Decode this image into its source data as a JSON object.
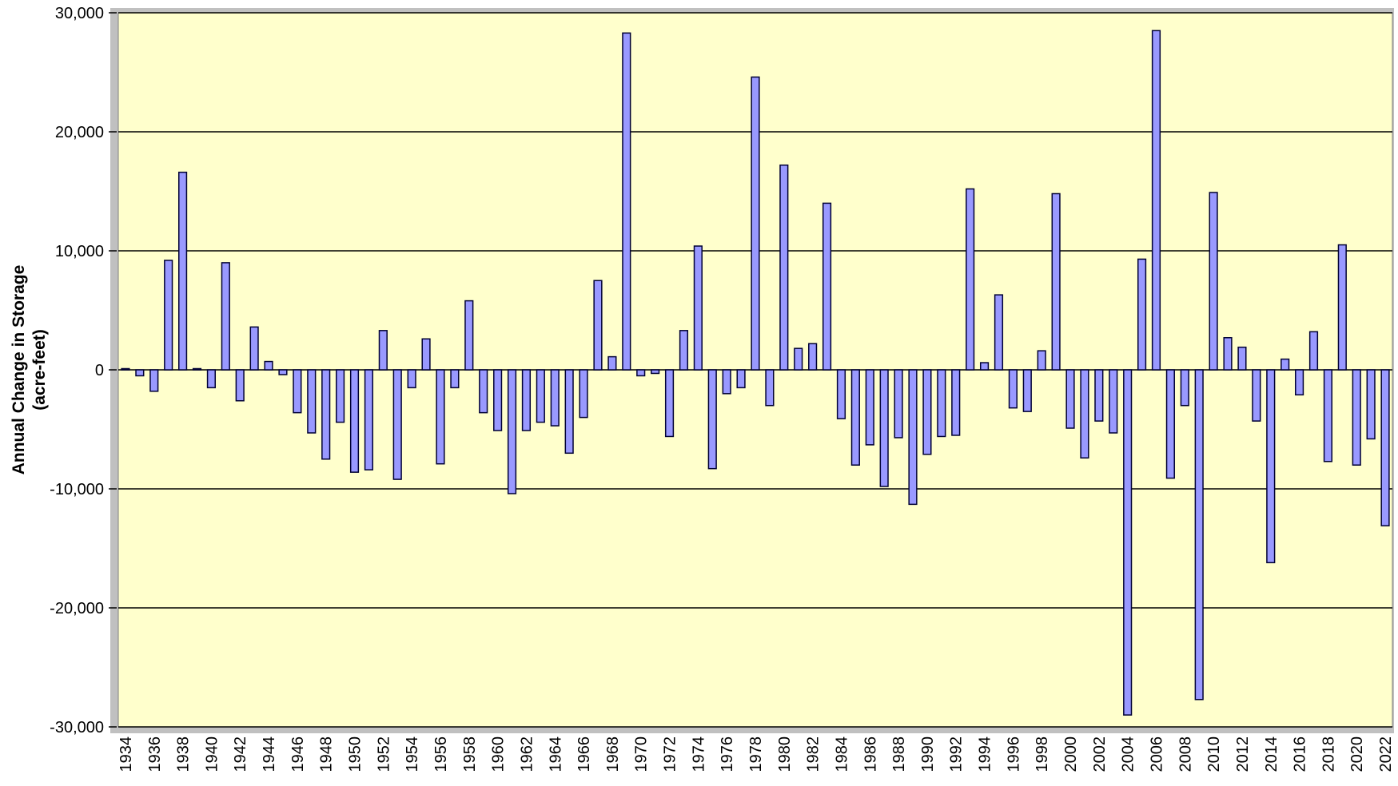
{
  "chart_data": {
    "type": "bar",
    "y_label": [
      "Annual Change in Storage",
      "(acre-feet)"
    ],
    "categories": [
      "1934",
      null,
      "1936",
      null,
      "1938",
      null,
      "1940",
      null,
      "1942",
      null,
      "1944",
      null,
      "1946",
      null,
      "1948",
      null,
      "1950",
      null,
      "1952",
      null,
      "1954",
      null,
      "1956",
      null,
      "1958",
      null,
      "1960",
      null,
      "1962",
      null,
      "1964",
      null,
      "1966",
      null,
      "1968",
      null,
      "1970",
      null,
      "1972",
      null,
      "1974",
      null,
      "1976",
      null,
      "1978",
      null,
      "1980",
      null,
      "1982",
      null,
      "1984",
      null,
      "1986",
      null,
      "1988",
      null,
      "1990",
      null,
      "1992",
      null,
      "1994",
      null,
      "1996",
      null,
      "1998",
      null,
      "2000",
      null,
      "2002",
      null,
      "2004",
      null,
      "2006",
      null,
      "2008",
      null,
      "2010",
      null,
      "2012",
      null,
      "2014",
      null,
      "2016",
      null,
      "2018",
      null,
      "2020",
      null,
      "2022"
    ],
    "values": [
      100,
      -500,
      -1800,
      9200,
      16600,
      100,
      -1500,
      9000,
      -2600,
      3600,
      700,
      -400,
      -3600,
      -5300,
      -7500,
      -4400,
      -8600,
      -8400,
      3300,
      -9200,
      -1500,
      2600,
      -7900,
      -1500,
      5800,
      -3600,
      -5100,
      -10400,
      -5100,
      -4400,
      -4700,
      -7000,
      -4000,
      7500,
      1100,
      28300,
      -500,
      -300,
      -5600,
      3300,
      10400,
      -8300,
      -2000,
      -1500,
      24600,
      -3000,
      17200,
      1800,
      2200,
      14000,
      -4100,
      -8000,
      -6300,
      -9800,
      -5700,
      -11300,
      -7100,
      -5600,
      -5500,
      15200,
      600,
      6300,
      -3200,
      -3500,
      1600,
      14800,
      -4900,
      -7400,
      -4300,
      -5300,
      -29000,
      9300,
      28500,
      -9100,
      -3000,
      -27700,
      14900,
      2700,
      1900,
      -4300,
      -16200,
      900,
      -2100,
      3200,
      -7700,
      10500,
      -8000,
      -5800,
      -13100
    ],
    "color": "#9999ff",
    "ylim": [
      -30000,
      30000
    ],
    "yticks": [
      {
        "value": -30000,
        "label": "-30,000"
      },
      {
        "value": -20000,
        "label": "-20,000"
      },
      {
        "value": -10000,
        "label": "-10,000"
      },
      0,
      {
        "value": 10000,
        "label": "10,000"
      },
      {
        "value": 20000,
        "label": "20,000"
      },
      {
        "value": 30000,
        "label": "30,000"
      }
    ],
    "grid": true
  }
}
